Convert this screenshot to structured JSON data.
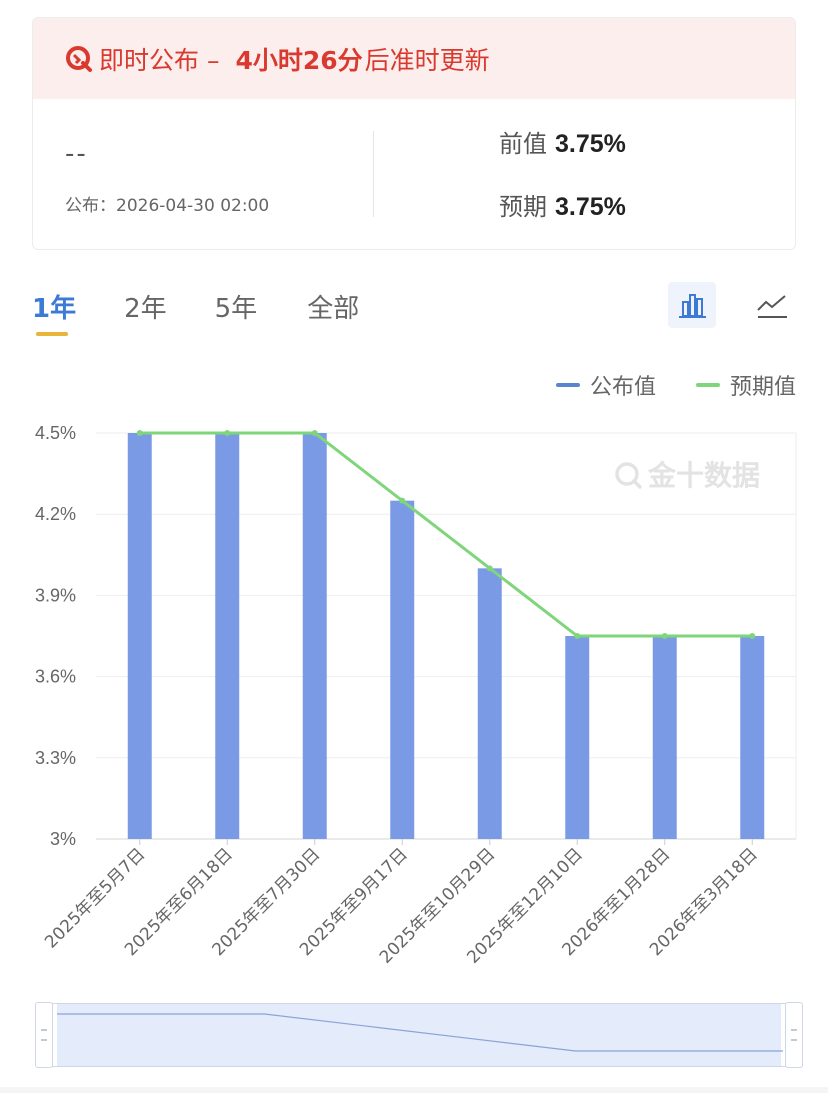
{
  "header": {
    "prefix": "即时公布 –",
    "countdown": "4小时26分",
    "suffix": "后准时更新"
  },
  "release": {
    "actual": "--",
    "published": "公布：2026-04-30 02:00",
    "previous_label": "前值",
    "previous_value": "3.75%",
    "forecast_label": "预期",
    "forecast_value": "3.75%"
  },
  "tabs": [
    "1年",
    "2年",
    "5年",
    "全部"
  ],
  "icons": {
    "bar_view": "bar-chart-icon",
    "line_view": "line-chart-icon",
    "logo": "jin10-logo-icon"
  },
  "watermark": "金十数据",
  "colors": {
    "accent": "#d9392e",
    "bar": "#7b9ae6",
    "line": "#7fd67a",
    "tab_active": "#3d7ad6"
  },
  "chart_data": {
    "type": "bar",
    "categories": [
      "2025年至5月7日",
      "2025年至6月18日",
      "2025年至7月30日",
      "2025年至9月17日",
      "2025年至10月29日",
      "2025年至12月10日",
      "2026年至1月28日",
      "2026年至3月18日"
    ],
    "series": [
      {
        "name": "公布值",
        "type": "bar",
        "values": [
          4.5,
          4.5,
          4.5,
          4.25,
          4.0,
          3.75,
          3.75,
          3.75
        ]
      },
      {
        "name": "预期值",
        "type": "line",
        "values": [
          4.5,
          4.5,
          4.5,
          4.25,
          4.0,
          3.75,
          3.75,
          3.75
        ]
      }
    ],
    "y_ticks": [
      "4.5%",
      "4.2%",
      "3.9%",
      "3.6%",
      "3.3%",
      "3%"
    ],
    "ylim": [
      3.0,
      4.5
    ],
    "grid": true,
    "legend": "top-right"
  }
}
